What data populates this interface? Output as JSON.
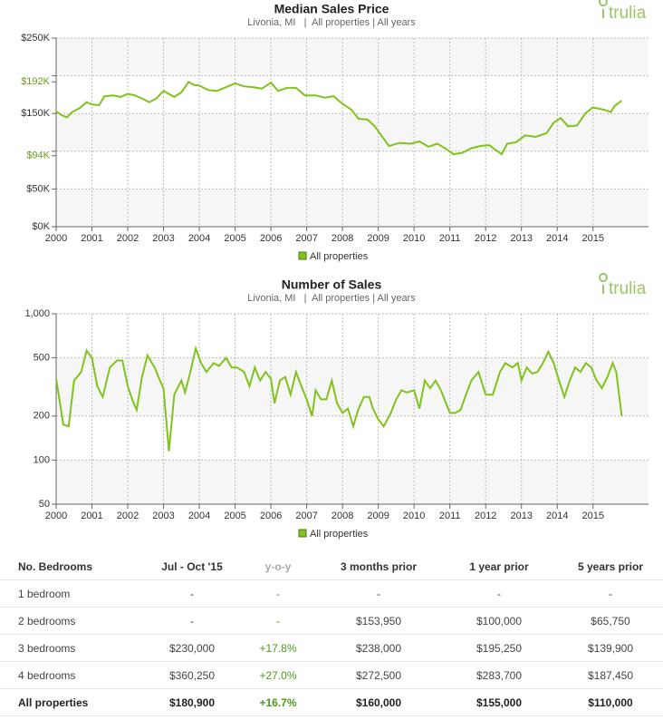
{
  "chart_data": [
    {
      "type": "line",
      "title": "Median Sales Price",
      "subtitle": "Livonia, MI   |  All properties | All years",
      "brand": "trulia",
      "x": [
        2000.0,
        2000.15,
        2000.3,
        2000.45,
        2000.65,
        2000.85,
        2001.0,
        2001.2,
        2001.35,
        2001.6,
        2001.8,
        2002.0,
        2002.2,
        2002.4,
        2002.6,
        2002.8,
        2003.0,
        2003.15,
        2003.3,
        2003.5,
        2003.7,
        2003.85,
        2004.0,
        2004.25,
        2004.5,
        2004.75,
        2005.0,
        2005.25,
        2005.5,
        2005.75,
        2006.0,
        2006.2,
        2006.45,
        2006.7,
        2006.95,
        2007.25,
        2007.5,
        2007.75,
        2008.0,
        2008.25,
        2008.45,
        2008.7,
        2008.9,
        2009.1,
        2009.3,
        2009.6,
        2009.9,
        2010.15,
        2010.4,
        2010.65,
        2010.9,
        2011.1,
        2011.35,
        2011.6,
        2011.85,
        2012.1,
        2012.3,
        2012.45,
        2012.6,
        2012.85,
        2013.1,
        2013.4,
        2013.7,
        2013.9,
        2014.1,
        2014.3,
        2014.55,
        2014.8,
        2015.0,
        2015.3,
        2015.5,
        2015.6,
        2015.8
      ],
      "series": [
        {
          "name": "All properties",
          "color": "#80c31c",
          "values": [
            153000,
            148000,
            145000,
            152000,
            157000,
            165000,
            162000,
            161000,
            173000,
            174000,
            172000,
            176000,
            174000,
            170000,
            165000,
            170000,
            180000,
            176000,
            172000,
            178000,
            192000,
            188000,
            187000,
            181000,
            180000,
            185000,
            190000,
            186000,
            185000,
            183000,
            191000,
            180000,
            184000,
            184000,
            174000,
            174000,
            171000,
            173000,
            163000,
            155000,
            143000,
            142000,
            133000,
            120000,
            107000,
            111000,
            110000,
            113000,
            106000,
            110000,
            103000,
            96000,
            98000,
            104000,
            107000,
            108000,
            101000,
            96000,
            110000,
            112000,
            121000,
            119000,
            124000,
            138000,
            144000,
            133000,
            134000,
            151000,
            158000,
            155000,
            152000,
            160000,
            167000
          ]
        }
      ],
      "xlim": [
        2000,
        2016.55
      ],
      "xticks": [
        2000,
        2001,
        2002,
        2003,
        2004,
        2005,
        2006,
        2007,
        2008,
        2009,
        2010,
        2011,
        2012,
        2013,
        2014,
        2015
      ],
      "ylim": [
        0,
        250000
      ],
      "yticks": [
        {
          "value": 0,
          "label": "$0K"
        },
        {
          "value": 50000,
          "label": "$50K"
        },
        {
          "value": 100000,
          "label": null
        },
        {
          "value": 150000,
          "label": "$150K"
        },
        {
          "value": 200000,
          "label": null
        },
        {
          "value": 250000,
          "label": "$250K"
        }
      ],
      "highlight_ticks": [
        {
          "value": 94000,
          "label": "$94K"
        },
        {
          "value": 192000,
          "label": "$192K"
        }
      ],
      "highlight_color": "#6a9a1f",
      "grid": true,
      "bands": true,
      "log_scale": false,
      "legend": "bottom"
    },
    {
      "type": "line",
      "title": "Number of Sales",
      "subtitle": "Livonia, MI   |  All properties | All years",
      "brand": "trulia",
      "x": [
        2000.0,
        2000.2,
        2000.35,
        2000.5,
        2000.7,
        2000.85,
        2001.0,
        2001.15,
        2001.3,
        2001.5,
        2001.7,
        2001.85,
        2002.0,
        2002.15,
        2002.25,
        2002.4,
        2002.55,
        2002.75,
        2002.9,
        2003.0,
        2003.15,
        2003.3,
        2003.5,
        2003.6,
        2003.75,
        2003.9,
        2004.05,
        2004.2,
        2004.4,
        2004.55,
        2004.75,
        2004.9,
        2005.05,
        2005.25,
        2005.4,
        2005.55,
        2005.7,
        2005.85,
        2006.0,
        2006.1,
        2006.25,
        2006.4,
        2006.55,
        2006.7,
        2006.85,
        2007.0,
        2007.15,
        2007.25,
        2007.4,
        2007.55,
        2007.7,
        2007.85,
        2008.0,
        2008.15,
        2008.3,
        2008.45,
        2008.6,
        2008.75,
        2008.85,
        2009.0,
        2009.15,
        2009.35,
        2009.5,
        2009.65,
        2009.8,
        2010.0,
        2010.15,
        2010.3,
        2010.45,
        2010.6,
        2010.75,
        2011.0,
        2011.15,
        2011.3,
        2011.45,
        2011.6,
        2011.8,
        2012.0,
        2012.2,
        2012.4,
        2012.55,
        2012.75,
        2012.9,
        2013.0,
        2013.15,
        2013.3,
        2013.45,
        2013.6,
        2013.75,
        2013.9,
        2014.05,
        2014.2,
        2014.35,
        2014.5,
        2014.65,
        2014.8,
        2014.95,
        2015.1,
        2015.25,
        2015.4,
        2015.55,
        2015.65,
        2015.8
      ],
      "series": [
        {
          "name": "All properties",
          "color": "#80c31c",
          "values": [
            360,
            175,
            170,
            350,
            400,
            560,
            500,
            320,
            270,
            430,
            480,
            480,
            320,
            250,
            220,
            370,
            520,
            430,
            350,
            310,
            115,
            280,
            350,
            290,
            400,
            580,
            460,
            400,
            460,
            440,
            500,
            430,
            430,
            400,
            320,
            430,
            350,
            400,
            360,
            245,
            350,
            370,
            280,
            400,
            320,
            260,
            200,
            300,
            260,
            260,
            350,
            245,
            210,
            225,
            170,
            225,
            270,
            270,
            225,
            190,
            170,
            210,
            260,
            300,
            290,
            300,
            225,
            350,
            310,
            350,
            300,
            210,
            210,
            220,
            280,
            350,
            400,
            280,
            280,
            400,
            460,
            430,
            460,
            350,
            430,
            390,
            400,
            460,
            550,
            460,
            350,
            270,
            350,
            430,
            400,
            460,
            430,
            350,
            310,
            370,
            460,
            400,
            200
          ]
        }
      ],
      "xlim": [
        2000,
        2016.55
      ],
      "xticks": [
        2000,
        2001,
        2002,
        2003,
        2004,
        2005,
        2006,
        2007,
        2008,
        2009,
        2010,
        2011,
        2012,
        2013,
        2014,
        2015
      ],
      "ylim": [
        50,
        1000
      ],
      "yticks": [
        50,
        100,
        200,
        500,
        {
          "value": 1000,
          "label": "1,000"
        }
      ],
      "grid": true,
      "bands": true,
      "log_scale": true,
      "legend": "bottom"
    }
  ],
  "table": {
    "header": [
      "No. Bedrooms",
      "Jul - Oct '15",
      "y-o-y",
      "3 months prior",
      "1 year prior",
      "5 years prior"
    ],
    "rows": [
      [
        "1 bedroom",
        "-",
        "-",
        "-",
        "-",
        "-"
      ],
      [
        "2 bedrooms",
        "-",
        "-",
        "$153,950",
        "$100,000",
        "$65,750"
      ],
      [
        "3 bedrooms",
        "$230,000",
        "+17.8%",
        "$238,000",
        "$195,250",
        "$139,900"
      ],
      [
        "4 bedrooms",
        "$360,250",
        "+27.0%",
        "$272,500",
        "$283,700",
        "$187,450"
      ],
      [
        "All properties",
        "$180,900",
        "+16.7%",
        "$160,000",
        "$155,000",
        "$110,000"
      ]
    ],
    "highlight_column": 2,
    "highlight_color": "#4a9a1a",
    "bold_last_row": true
  }
}
